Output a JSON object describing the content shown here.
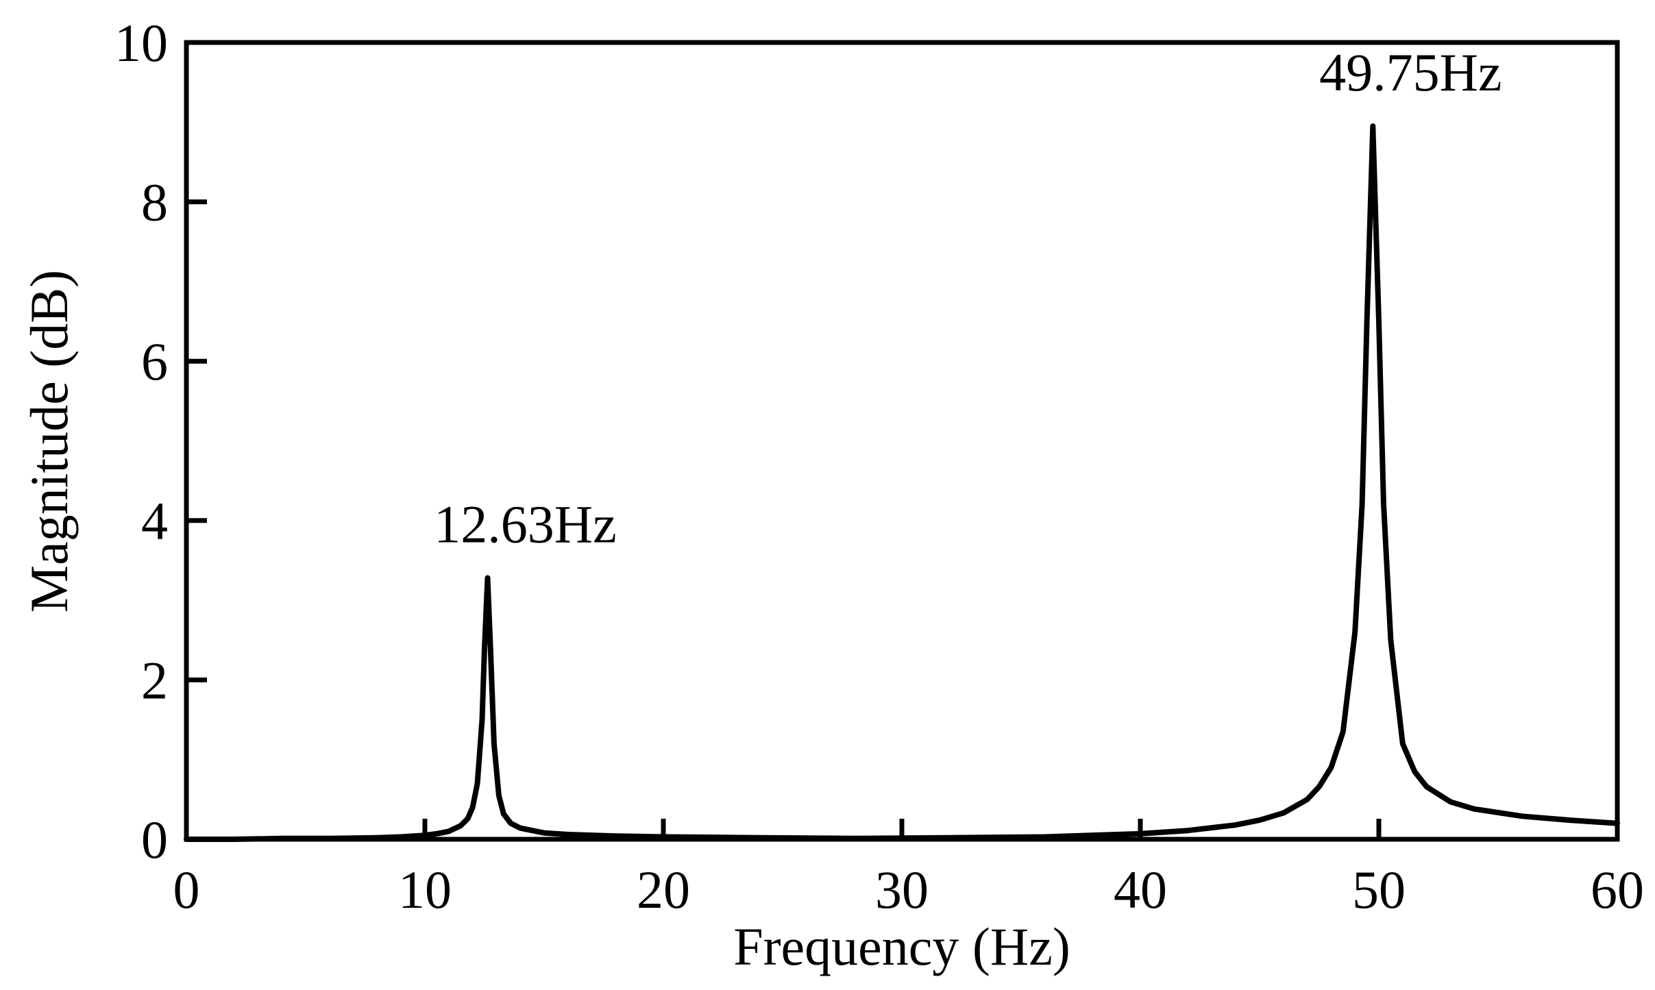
{
  "chart_data": {
    "type": "line",
    "xlabel": "Frequency (Hz)",
    "ylabel": "Magnitude (dB)",
    "xlim": [
      0,
      60
    ],
    "ylim": [
      0,
      10
    ],
    "xticks": [
      0,
      10,
      20,
      30,
      40,
      50,
      60
    ],
    "yticks": [
      0,
      2,
      4,
      6,
      8,
      10
    ],
    "grid": false,
    "line_color": "#000000",
    "annotations": [
      {
        "text": "12.63Hz",
        "x": 12.63,
        "y": 3.28
      },
      {
        "text": "49.75Hz",
        "x": 49.75,
        "y": 8.95
      }
    ],
    "series": [
      {
        "x": [
          0,
          2,
          4,
          6,
          8,
          9,
          10,
          10.5,
          11,
          11.5,
          11.8,
          12.0,
          12.2,
          12.4,
          12.5,
          12.63,
          12.75,
          12.9,
          13.1,
          13.3,
          13.6,
          14,
          15,
          16,
          18,
          20,
          24,
          28,
          32,
          36,
          40,
          42,
          44,
          45,
          46,
          47,
          47.5,
          48,
          48.5,
          49,
          49.3,
          49.5,
          49.75,
          50.0,
          50.2,
          50.5,
          51,
          51.5,
          52,
          53,
          54,
          56,
          58,
          60
        ],
        "y": [
          0.0,
          0.0,
          0.01,
          0.01,
          0.02,
          0.03,
          0.05,
          0.07,
          0.1,
          0.17,
          0.26,
          0.4,
          0.7,
          1.5,
          2.4,
          3.28,
          2.4,
          1.2,
          0.55,
          0.32,
          0.2,
          0.14,
          0.08,
          0.06,
          0.04,
          0.03,
          0.02,
          0.01,
          0.02,
          0.03,
          0.07,
          0.11,
          0.18,
          0.24,
          0.33,
          0.5,
          0.66,
          0.9,
          1.35,
          2.6,
          4.2,
          6.5,
          8.95,
          6.5,
          4.2,
          2.5,
          1.2,
          0.85,
          0.66,
          0.47,
          0.38,
          0.29,
          0.24,
          0.2
        ]
      }
    ]
  }
}
